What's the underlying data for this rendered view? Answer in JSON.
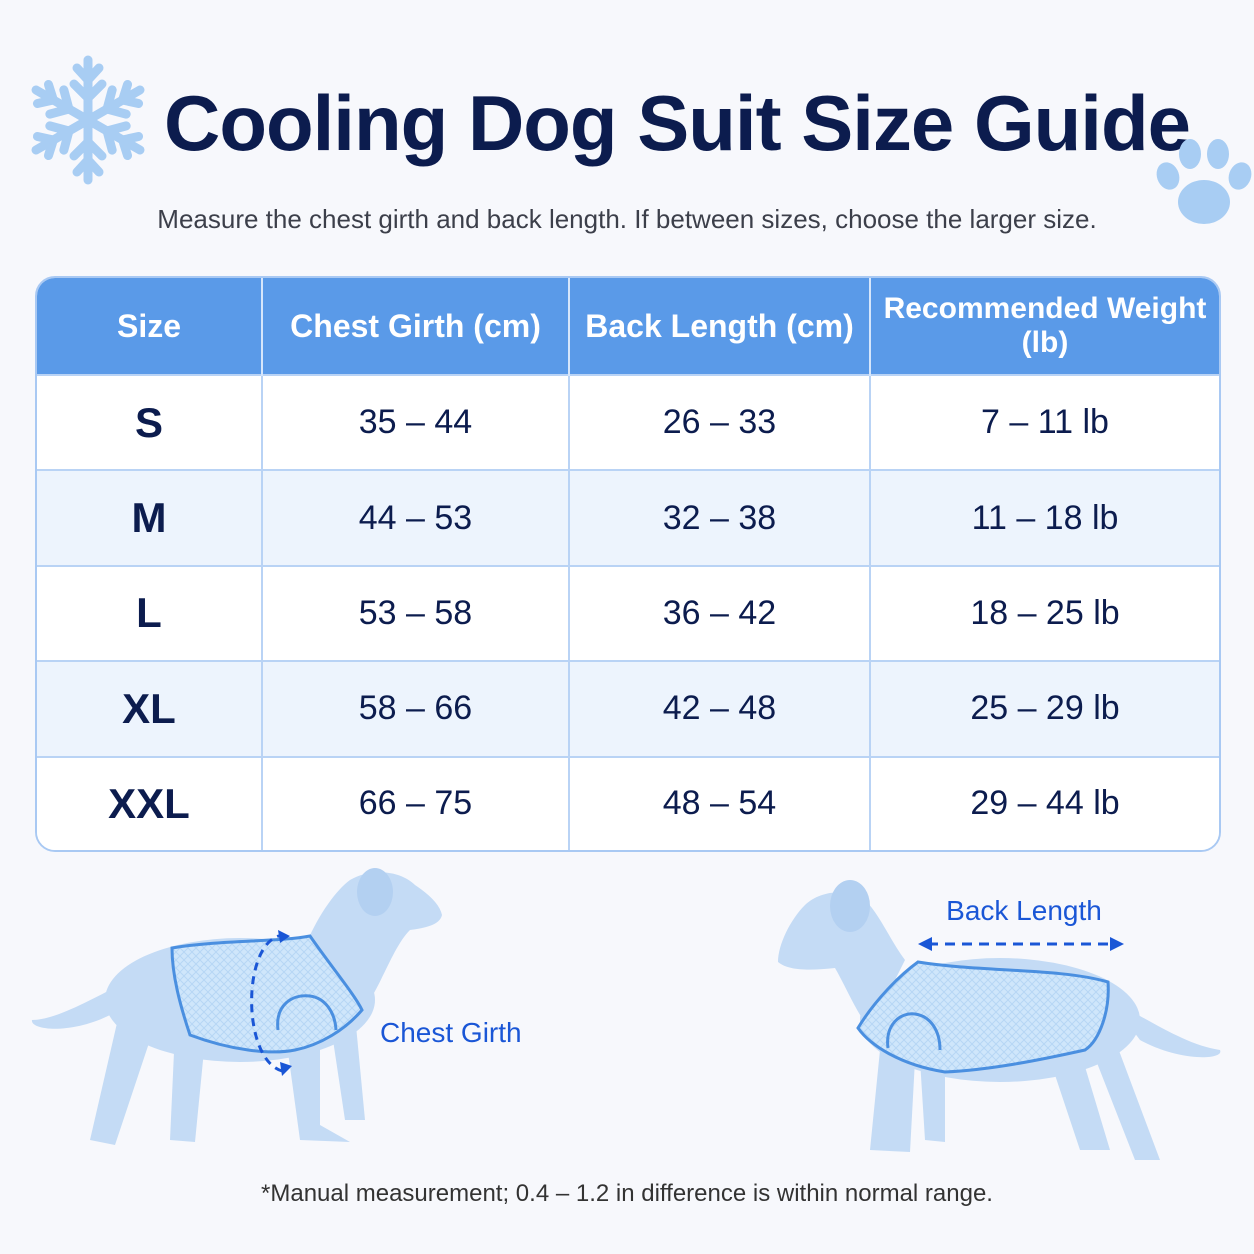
{
  "header": {
    "title": "Cooling Dog Suit Size Guide",
    "subtitle": "Measure the chest girth and back length. If between sizes, choose the larger size."
  },
  "table": {
    "columns": [
      "Size",
      "Chest Girth (cm)",
      "Back Length (cm)",
      "Recommended Weight (lb)"
    ],
    "rows": [
      {
        "size": "S",
        "chest": "35 – 44",
        "back": "26 – 33",
        "weight": "7 – 11 lb"
      },
      {
        "size": "M",
        "chest": "44 – 53",
        "back": "32 – 38",
        "weight": "11 – 18 lb"
      },
      {
        "size": "L",
        "chest": "53 – 58",
        "back": "36 – 42",
        "weight": "18 – 25 lb"
      },
      {
        "size": "XL",
        "chest": "58 – 66",
        "back": "42 – 48",
        "weight": "25 – 29 lb"
      },
      {
        "size": "XXL",
        "chest": "66 – 75",
        "back": "48 – 54",
        "weight": "29 – 44 lb"
      }
    ]
  },
  "illustrations": {
    "chest_label": "Chest Girth",
    "back_label": "Back Length"
  },
  "icons": {
    "left": "snowflake-icon",
    "right": "paw-print-icon"
  },
  "colors": {
    "header_blue": "#5a9ae8",
    "title_navy": "#0c1c4e",
    "accent_blue": "#1a56d6",
    "dog_fill": "#c4dbf5",
    "suit_fill": "#cfe6fb"
  },
  "footnote": "*Manual measurement; 0.4 – 1.2 in difference is within normal range."
}
